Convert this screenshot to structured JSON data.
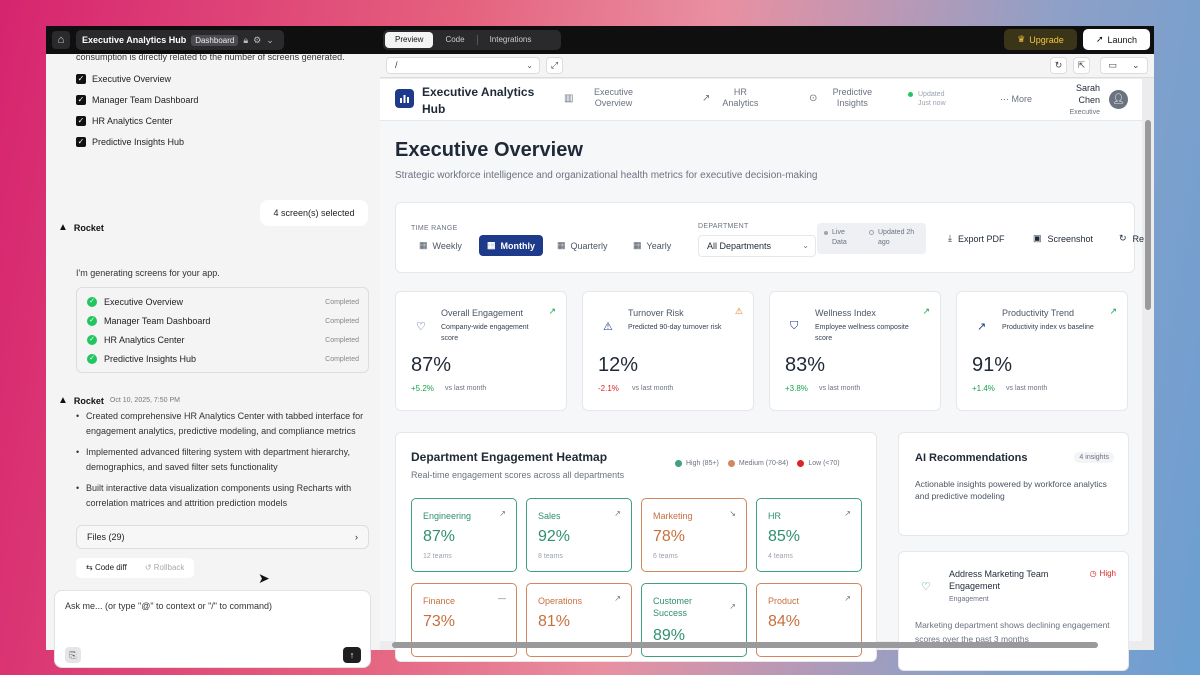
{
  "topbar": {
    "project_name": "Executive Analytics Hub",
    "project_badge": "Dashboard",
    "tabs": [
      "Preview",
      "Code",
      "Integrations"
    ],
    "upgrade_label": "Upgrade",
    "launch_label": "Launch"
  },
  "chat": {
    "cutoff_text": "consumption is directly related to the number of screens generated.",
    "screens": [
      "Executive Overview",
      "Manager Team Dashboard",
      "HR Analytics Center",
      "Predictive Insights Hub"
    ],
    "selected_bubble": "4 screen(s) selected",
    "msg1": {
      "author": "Rocket",
      "text": "I'm generating screens for your app."
    },
    "statuses": [
      {
        "label": "Executive Overview",
        "status": "Completed"
      },
      {
        "label": "Manager Team Dashboard",
        "status": "Completed"
      },
      {
        "label": "HR Analytics Center",
        "status": "Completed"
      },
      {
        "label": "Predictive Insights Hub",
        "status": "Completed"
      }
    ],
    "msg2": {
      "author": "Rocket",
      "date": "Oct 10, 2025, 7:50 PM"
    },
    "bullets": [
      "Created comprehensive HR Analytics Center with tabbed interface for engagement analytics, predictive modeling, and compliance metrics",
      "Implemented advanced filtering system with department hierarchy, demographics, and saved filter sets functionality",
      "Built interactive data visualization components using Recharts with correlation matrices and attrition prediction models"
    ],
    "files_label": "Files (29)",
    "code_diff_label": "Code diff",
    "rollback_label": "Rollback",
    "input_placeholder": "Ask me... (or type \"@\" to context or \"/\" to command)"
  },
  "preview": {
    "url": "/",
    "nav": {
      "brand": "Executive Analytics Hub",
      "items": [
        "Executive Overview",
        "HR Analytics",
        "Predictive Insights"
      ],
      "updated": "Updated Just now",
      "more": "More",
      "user_name": "Sarah Chen",
      "user_role": "Executive"
    },
    "title": "Executive Overview",
    "subtitle": "Strategic workforce intelligence and organizational health metrics for executive decision-making",
    "filters": {
      "time_range_label": "TIME RANGE",
      "ranges": [
        "Weekly",
        "Monthly",
        "Quarterly",
        "Yearly"
      ],
      "active_range": "Monthly",
      "department_label": "DEPARTMENT",
      "department_value": "All Departments",
      "live_data": "Live Data",
      "updated": "Updated 2h ago",
      "export_pdf": "Export PDF",
      "screenshot": "Screenshot",
      "refresh_cut": "Re"
    },
    "kpis": [
      {
        "title": "Overall Engagement",
        "desc": "Company-wide engagement score",
        "value": "87%",
        "change": "+5.2%",
        "vs": "vs last month",
        "icon": "heart-icon"
      },
      {
        "title": "Turnover Risk",
        "desc": "Predicted 90-day turnover risk",
        "value": "12%",
        "change": "-2.1%",
        "vs": "vs last month",
        "icon": "warning-icon"
      },
      {
        "title": "Wellness Index",
        "desc": "Employee wellness composite score",
        "value": "83%",
        "change": "+3.8%",
        "vs": "vs last month",
        "icon": "shield-icon"
      },
      {
        "title": "Productivity Trend",
        "desc": "Productivity index vs baseline",
        "value": "91%",
        "change": "+1.4%",
        "vs": "vs last month",
        "icon": "trend-up-icon"
      }
    ],
    "heatmap": {
      "title": "Department Engagement Heatmap",
      "subtitle": "Real-time engagement scores across all departments",
      "legend": [
        "High (85+)",
        "Medium (70-84)",
        "Low (<70)"
      ],
      "legend_colors": [
        "#3f9f7f",
        "#d2865b",
        "#dc2626"
      ],
      "cells": [
        {
          "name": "Engineering",
          "value": "87%",
          "teams": "12 teams"
        },
        {
          "name": "Sales",
          "value": "92%",
          "teams": "8 teams"
        },
        {
          "name": "Marketing",
          "value": "78%",
          "teams": "6 teams"
        },
        {
          "name": "HR",
          "value": "85%",
          "teams": "4 teams"
        },
        {
          "name": "Finance",
          "value": "73%"
        },
        {
          "name": "Operations",
          "value": "81%"
        },
        {
          "name": "Customer Success",
          "value": "89%"
        },
        {
          "name": "Product",
          "value": "84%"
        }
      ]
    },
    "ai": {
      "title": "AI Recommendations",
      "badge": "4 insights",
      "desc": "Actionable insights powered by workforce analytics and predictive modeling",
      "rec": {
        "title": "Address Marketing Team Engagement",
        "priority": "High",
        "category": "Engagement",
        "desc": "Marketing department shows declining engagement scores over the past 3 months"
      }
    }
  }
}
